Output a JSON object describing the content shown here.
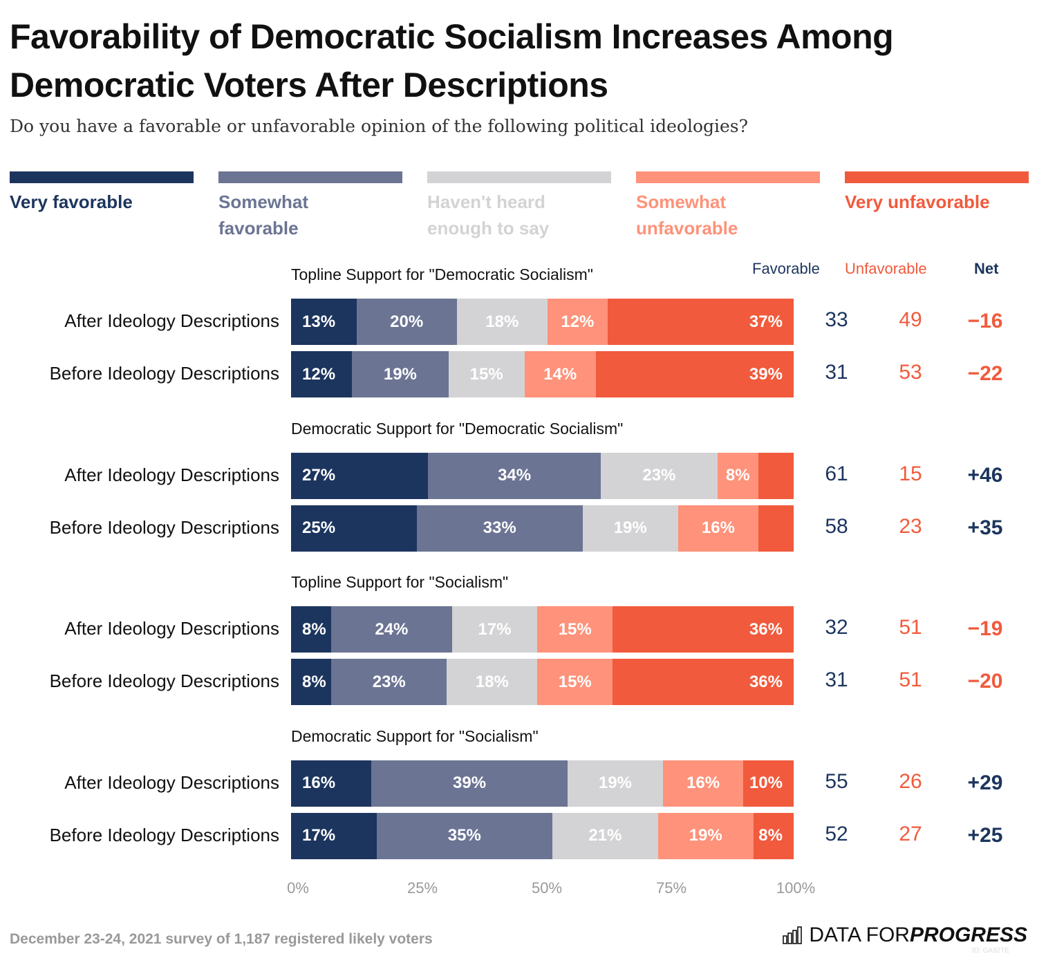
{
  "title_line1": "Favorability of Democratic Socialism Increases Among",
  "title_line2": "Democratic Voters After Descriptions",
  "subtitle": "Do you have a favorable or unfavorable opinion of the following political ideologies?",
  "legend": [
    {
      "label1": "Very favorable",
      "label2": "",
      "color": "#1c355e"
    },
    {
      "label1": "Somewhat",
      "label2": "favorable",
      "color": "#6b7493"
    },
    {
      "label1": "Haven't heard",
      "label2": "enough to say",
      "color": "#d3d3d5"
    },
    {
      "label1": "Somewhat",
      "label2": "unfavorable",
      "color": "#fe927a"
    },
    {
      "label1": "Very unfavorable",
      "label2": "",
      "color": "#f15a3c"
    }
  ],
  "columns": {
    "favorable": "Favorable",
    "unfavorable": "Unfavorable",
    "net": "Net"
  },
  "colors": {
    "favorable_text": "#1c355e",
    "unfavorable_text": "#f15a3c"
  },
  "footer": "December 23-24, 2021 survey of 1,187 registered likely voters",
  "logo": {
    "text1": "DATA FOR ",
    "text2": "PROGRESS"
  },
  "id_text": "ID: GA92TE",
  "chart_data": {
    "type": "bar",
    "orientation": "horizontal-stacked",
    "xlim": [
      0,
      100
    ],
    "xticks": [
      "0%",
      "25%",
      "50%",
      "75%",
      "100%"
    ],
    "series_names": [
      "Very favorable",
      "Somewhat favorable",
      "Haven't heard enough to say",
      "Somewhat unfavorable",
      "Very unfavorable"
    ],
    "groups": [
      {
        "label": "Topline Support for \"Democratic Socialism\"",
        "rows": [
          {
            "label": "After Ideology Descriptions",
            "values": [
              13,
              20,
              18,
              12,
              37
            ],
            "labels": [
              "13%",
              "20%",
              "18%",
              "12%",
              "37%"
            ],
            "favorable": "33",
            "unfavorable": "49",
            "net": "−16"
          },
          {
            "label": "Before Ideology Descriptions",
            "values": [
              12,
              19,
              15,
              14,
              39
            ],
            "labels": [
              "12%",
              "19%",
              "15%",
              "14%",
              "39%"
            ],
            "favorable": "31",
            "unfavorable": "53",
            "net": "−22"
          }
        ]
      },
      {
        "label": "Democratic Support for \"Democratic Socialism\"",
        "rows": [
          {
            "label": "After Ideology Descriptions",
            "values": [
              27,
              34,
              23,
              8,
              7
            ],
            "labels": [
              "27%",
              "34%",
              "23%",
              "8%",
              ""
            ],
            "favorable": "61",
            "unfavorable": "15",
            "net": "+46"
          },
          {
            "label": "Before Ideology Descriptions",
            "values": [
              25,
              33,
              19,
              16,
              7
            ],
            "labels": [
              "25%",
              "33%",
              "19%",
              "16%",
              ""
            ],
            "favorable": "58",
            "unfavorable": "23",
            "net": "+35"
          }
        ]
      },
      {
        "label": "Topline Support for \"Socialism\"",
        "rows": [
          {
            "label": "After Ideology Descriptions",
            "values": [
              8,
              24,
              17,
              15,
              36
            ],
            "labels": [
              "8%",
              "24%",
              "17%",
              "15%",
              "36%"
            ],
            "favorable": "32",
            "unfavorable": "51",
            "net": "−19"
          },
          {
            "label": "Before Ideology Descriptions",
            "values": [
              8,
              23,
              18,
              15,
              36
            ],
            "labels": [
              "8%",
              "23%",
              "18%",
              "15%",
              "36%"
            ],
            "favorable": "31",
            "unfavorable": "51",
            "net": "−20"
          }
        ]
      },
      {
        "label": "Democratic Support for \"Socialism\"",
        "rows": [
          {
            "label": "After Ideology Descriptions",
            "values": [
              16,
              39,
              19,
              16,
              10
            ],
            "labels": [
              "16%",
              "39%",
              "19%",
              "16%",
              "10%"
            ],
            "favorable": "55",
            "unfavorable": "26",
            "net": "+29"
          },
          {
            "label": "Before Ideology Descriptions",
            "values": [
              17,
              35,
              21,
              19,
              8
            ],
            "labels": [
              "17%",
              "35%",
              "21%",
              "19%",
              "8%"
            ],
            "favorable": "52",
            "unfavorable": "27",
            "net": "+25"
          }
        ]
      }
    ]
  }
}
